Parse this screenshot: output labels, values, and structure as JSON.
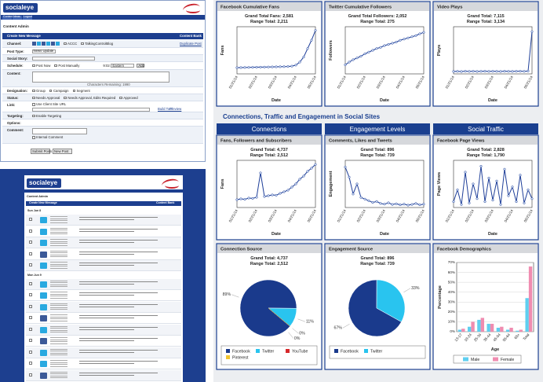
{
  "app_top": {
    "logo": "socialeye",
    "menu": [
      "Content",
      "Ideas",
      "Logout"
    ],
    "heading": "Content Admin",
    "panel_title": "Create New Message",
    "panel_link": "Content Bank",
    "duplicate": "Duplicate Post",
    "fields": [
      {
        "label": "Channel:",
        "options": [
          "ACCC",
          "TalkingControlBlog"
        ]
      },
      {
        "label": "Post Type:",
        "value": "News Update"
      },
      {
        "label": "Social Story:"
      },
      {
        "label": "Schedule:",
        "options": [
          "Post Now",
          "Post Manually"
        ],
        "time": "9:02 AM",
        "zone": "Eastern",
        "button": "Add"
      },
      {
        "label": "Content:",
        "note": "Characters Remaining: 1990"
      },
      {
        "label": "Designation:",
        "options": [
          "Group",
          "Campaign",
          "Segment"
        ]
      },
      {
        "label": "Status:",
        "options": [
          "Needs Approval",
          "Needs Approval, Edits Required",
          "Approved"
        ]
      },
      {
        "label": "Link:",
        "options": [
          "Use Client Site URL"
        ],
        "links": [
          "Build Tool",
          "Preview"
        ]
      },
      {
        "label": "Targeting:",
        "options": [
          "Enable Targeting"
        ]
      },
      {
        "label": "Options:"
      },
      {
        "label": "Comment:",
        "options": [
          "Internal Comment"
        ]
      }
    ],
    "buttons": [
      "Submit Posts",
      "New Post"
    ]
  },
  "app_bottom": {
    "logo": "socialeye",
    "heading": "Content Admin",
    "panel_title": "Create New Message",
    "panel_link": "Content Bank",
    "days": [
      "Sun Jun 8",
      "Mon Jun 9"
    ]
  },
  "dashboard": {
    "section_title": "Connections, Traffic and Engagement in Social Sites",
    "columns": [
      "Connections",
      "Engagement Levels",
      "Social Traffic"
    ]
  },
  "chart_data": [
    {
      "type": "line",
      "title": "Facebook Cumulative Fans",
      "grand_total": "Grand Total Fans: 2,581",
      "range_total": "Range Total: 2,211",
      "xlabel": "Date",
      "ylabel": "Fans",
      "categories": [
        "01/21/14",
        null,
        null,
        null,
        null,
        "02/21/14",
        null,
        null,
        null,
        null,
        "03/21/14",
        null,
        null,
        null,
        null,
        "04/21/14",
        null,
        null,
        null,
        null,
        "05/21/14"
      ],
      "values": [
        370,
        375,
        380,
        385,
        390,
        395,
        400,
        405,
        410,
        415,
        420,
        425,
        430,
        440,
        460,
        520,
        700,
        1000,
        1500,
        2000,
        2581
      ],
      "ylim": [
        0,
        2800
      ]
    },
    {
      "type": "line",
      "title": "Twitter Cumulative Followers",
      "grand_total": "Grand Total Followers: 2,052",
      "range_total": "Range Total: 275",
      "xlabel": "Date",
      "ylabel": "Followers",
      "categories": [
        "01/21/14",
        null,
        null,
        null,
        null,
        "02/21/14",
        null,
        null,
        null,
        null,
        "03/21/14",
        null,
        null,
        null,
        null,
        "04/21/14",
        null,
        null,
        null,
        null,
        "05/21/14"
      ],
      "values": [
        1777,
        1800,
        1820,
        1835,
        1850,
        1870,
        1885,
        1900,
        1915,
        1925,
        1940,
        1950,
        1960,
        1970,
        1985,
        1995,
        2005,
        2015,
        2025,
        2040,
        2052
      ],
      "ylim": [
        1700,
        2100
      ]
    },
    {
      "type": "line",
      "title": "Video Plays",
      "grand_total": "Grand Total: 7,115",
      "range_total": "Range Total: 3,134",
      "xlabel": "Date",
      "ylabel": "Plays",
      "categories": [
        "01/21/14",
        null,
        null,
        null,
        null,
        "02/21/14",
        null,
        null,
        null,
        null,
        "03/21/14",
        null,
        null,
        null,
        null,
        "04/21/14",
        null,
        null,
        null,
        null,
        "05/21/14"
      ],
      "values": [
        3990,
        4000,
        3985,
        4010,
        3995,
        4005,
        3990,
        4000,
        4010,
        3995,
        4005,
        4000,
        3990,
        4010,
        4000,
        3995,
        4005,
        4010,
        4000,
        4020,
        7115
      ],
      "ylim": [
        3800,
        7500
      ]
    },
    {
      "type": "line",
      "title": "Fans, Followers and Subscribers",
      "grand_total": "Grand Total: 4,737",
      "range_total": "Range Total: 2,512",
      "xlabel": "Date",
      "ylabel": "Fans",
      "categories": [
        "01/21/14",
        null,
        null,
        null,
        null,
        "02/21/14",
        null,
        null,
        null,
        null,
        "03/21/14",
        null,
        null,
        null,
        null,
        "04/21/14",
        null,
        null,
        null,
        null,
        "05/21/14"
      ],
      "values": [
        2500,
        2550,
        2520,
        2600,
        2580,
        2650,
        4200,
        2700,
        2750,
        2800,
        2780,
        2900,
        3000,
        3100,
        3300,
        3500,
        3800,
        4000,
        4300,
        4500,
        4737
      ],
      "ylim": [
        2000,
        5000
      ]
    },
    {
      "type": "line",
      "title": "Comments, Likes and Tweets",
      "grand_total": "Grand Total: 896",
      "range_total": "Range Total: 739",
      "xlabel": "Date",
      "ylabel": "Engagement",
      "categories": [
        "01/21/14",
        null,
        null,
        null,
        null,
        "02/21/14",
        null,
        null,
        null,
        null,
        "03/21/14",
        null,
        null,
        null,
        null,
        "04/21/14",
        null,
        null,
        null,
        null,
        "05/21/14"
      ],
      "values": [
        120,
        90,
        40,
        70,
        30,
        25,
        20,
        15,
        18,
        12,
        10,
        14,
        9,
        11,
        8,
        10,
        7,
        9,
        12,
        8,
        10
      ],
      "ylim": [
        0,
        140
      ]
    },
    {
      "type": "line",
      "title": "Facebook Page Views",
      "grand_total": "Grand Total: 2,828",
      "range_total": "Range Total: 1,790",
      "xlabel": "Date",
      "ylabel": "Page Views",
      "categories": [
        "01/21/14",
        null,
        null,
        null,
        null,
        "02/21/14",
        null,
        null,
        null,
        null,
        "03/21/14",
        null,
        null,
        null,
        null,
        "04/21/14",
        null,
        null,
        null,
        null,
        "05/21/14"
      ],
      "values": [
        20,
        60,
        10,
        120,
        15,
        80,
        30,
        140,
        20,
        100,
        25,
        90,
        10,
        130,
        40,
        70,
        20,
        110,
        15,
        60,
        30
      ],
      "ylim": [
        0,
        160
      ]
    },
    {
      "type": "pie",
      "title": "Connection Source",
      "grand_total": "Grand Total: 4,737",
      "range_total": "Range Total: 2,512",
      "categories": [
        "Facebook",
        "Twitter",
        "YouTube",
        "Pinterest"
      ],
      "values": [
        89,
        11,
        0,
        0
      ],
      "value_labels": [
        "89%",
        "11%",
        "0%",
        "0%"
      ],
      "colors": [
        "#1a3a8c",
        "#29c4ef",
        "#d6282b",
        "#f2c531"
      ]
    },
    {
      "type": "pie",
      "title": "Engagement Source",
      "grand_total": "Grand Total: 896",
      "range_total": "Range Total: 739",
      "categories": [
        "Facebook",
        "Twitter"
      ],
      "values": [
        67,
        33
      ],
      "value_labels": [
        "67%",
        "33%"
      ],
      "colors": [
        "#1a3a8c",
        "#29c4ef"
      ]
    },
    {
      "type": "bar",
      "title": "Facebook Demographics",
      "xlabel": "Age",
      "ylabel": "Percentage",
      "categories": [
        "13-17",
        "18-24",
        "25-34",
        "35-44",
        "45-54",
        "55-64",
        "65+",
        "Total"
      ],
      "series": [
        {
          "name": "Male",
          "color": "#5fcff0",
          "values": [
            2,
            5,
            12,
            8,
            4,
            2,
            1,
            34
          ]
        },
        {
          "name": "Female",
          "color": "#f08cb0",
          "values": [
            3,
            10,
            14,
            8,
            5,
            4,
            2,
            66
          ]
        }
      ],
      "ylim": [
        0,
        70
      ],
      "yticks": [
        {
          "value": 0,
          "label": "0%"
        },
        {
          "value": 10,
          "label": "10%"
        },
        {
          "value": 20,
          "label": "20%"
        },
        {
          "value": 30,
          "label": "30%"
        },
        {
          "value": 40,
          "label": "40%"
        },
        {
          "value": 50,
          "label": "50%"
        },
        {
          "value": 60,
          "label": "60%"
        },
        {
          "value": 70,
          "label": "70%"
        }
      ],
      "grid": true
    }
  ]
}
